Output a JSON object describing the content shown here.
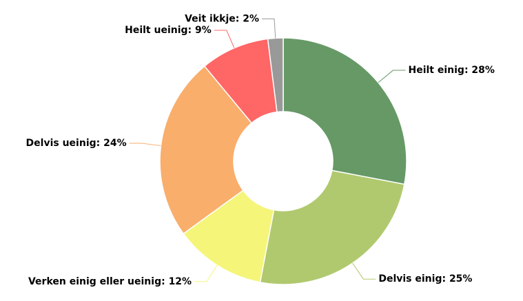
{
  "chart_data": {
    "type": "donut",
    "values": [
      28,
      25,
      12,
      24,
      9,
      2
    ],
    "value_labels": [
      "Heilt einig: 28%",
      "Delvis einig: 25%",
      "Verken einig eller ueinig: 12%",
      "Delvis ueinig: 24%",
      "Heilt ueinig: 9%",
      "Veit ikkje: 2%"
    ],
    "colors": [
      "#669966",
      "#b0c96e",
      "#f5f57a",
      "#f9ae6b",
      "#ff6666",
      "#999999"
    ]
  }
}
